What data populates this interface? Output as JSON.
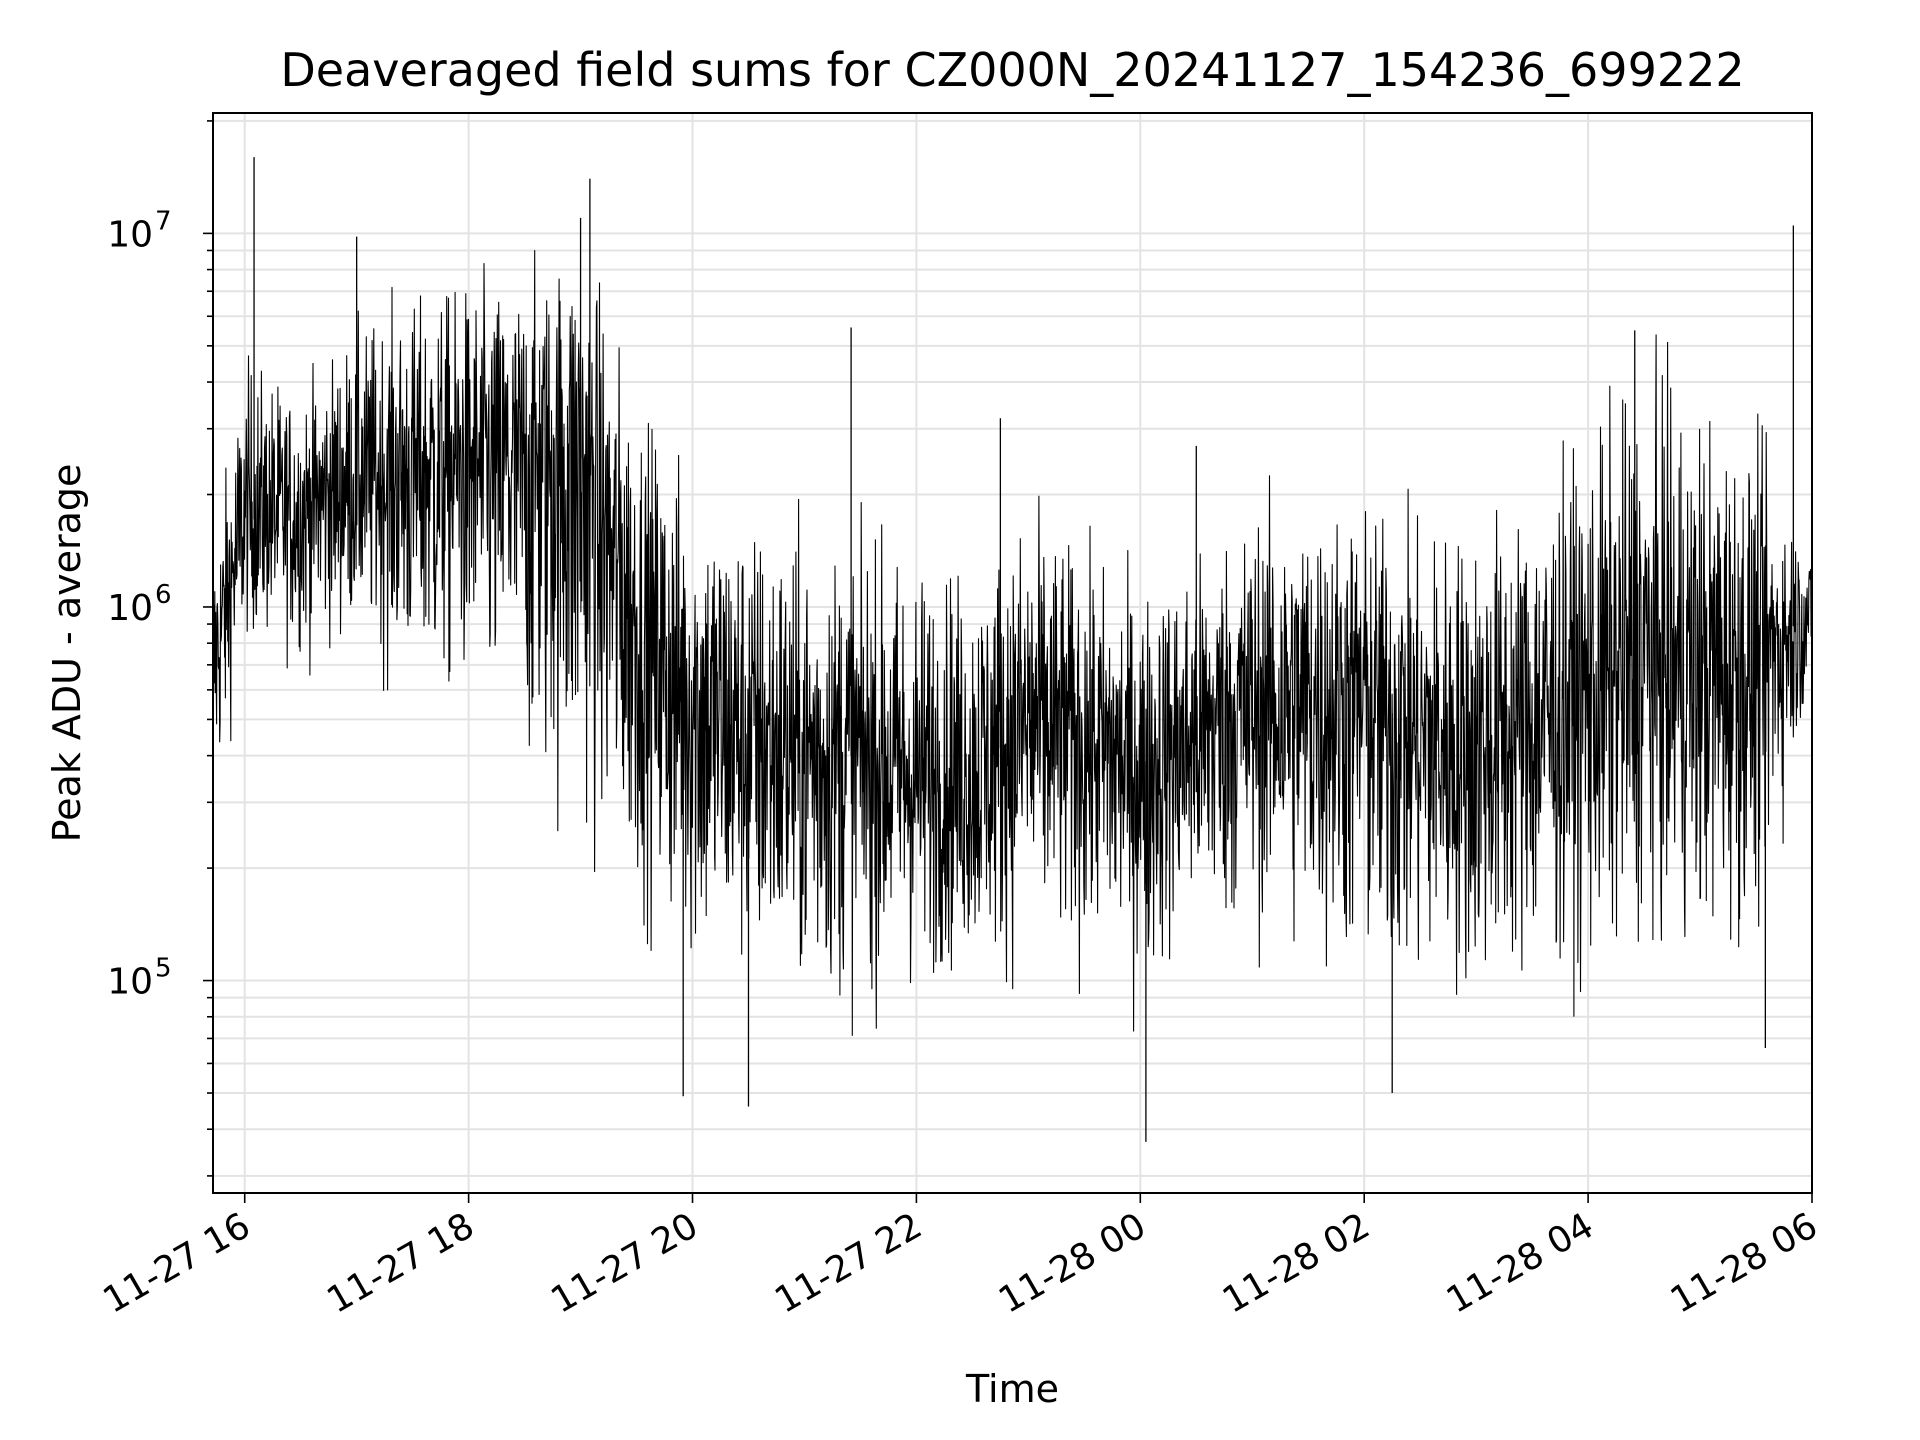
{
  "chart_data": {
    "type": "line",
    "title": "Deaveraged field sums for CZ000N_20241127_154236_699222",
    "xlabel": "Time",
    "ylabel": "Peak ADU - average",
    "yscale": "log",
    "ylim": [
      27000,
      21000000
    ],
    "xlim": [
      "2024-11-27 15:43",
      "2024-11-28 06:00"
    ],
    "grid": true,
    "line_color": "#000000",
    "x_ticks": [
      {
        "value": "2024-11-27 16:00",
        "label": "11-27 16"
      },
      {
        "value": "2024-11-27 18:00",
        "label": "11-27 18"
      },
      {
        "value": "2024-11-27 20:00",
        "label": "11-27 20"
      },
      {
        "value": "2024-11-27 22:00",
        "label": "11-27 22"
      },
      {
        "value": "2024-11-28 00:00",
        "label": "11-28 00"
      },
      {
        "value": "2024-11-28 02:00",
        "label": "11-28 02"
      },
      {
        "value": "2024-11-28 04:00",
        "label": "11-28 04"
      },
      {
        "value": "2024-11-28 06:00",
        "label": "11-28 06"
      }
    ],
    "y_ticks": [
      {
        "value": 100000,
        "base": "10",
        "exp": "5"
      },
      {
        "value": 1000000,
        "base": "10",
        "exp": "6"
      },
      {
        "value": 10000000,
        "base": "10",
        "exp": "7"
      }
    ],
    "series_envelope": {
      "x": [
        "2024-11-27 15:43",
        "2024-11-27 16:00",
        "2024-11-27 16:30",
        "2024-11-27 17:00",
        "2024-11-27 17:30",
        "2024-11-27 18:00",
        "2024-11-27 18:30",
        "2024-11-27 19:00",
        "2024-11-27 19:30",
        "2024-11-27 20:00",
        "2024-11-27 20:30",
        "2024-11-27 21:00",
        "2024-11-27 21:30",
        "2024-11-27 22:00",
        "2024-11-27 22:30",
        "2024-11-27 23:00",
        "2024-11-27 23:30",
        "2024-11-28 00:00",
        "2024-11-28 00:30",
        "2024-11-28 01:00",
        "2024-11-28 01:30",
        "2024-11-28 02:00",
        "2024-11-28 02:30",
        "2024-11-28 03:00",
        "2024-11-28 03:30",
        "2024-11-28 04:00",
        "2024-11-28 04:30",
        "2024-11-28 05:00",
        "2024-11-28 05:30",
        "2024-11-28 06:00"
      ],
      "median": [
        700000,
        1700000,
        1800000,
        2200000,
        2400000,
        2400000,
        2500000,
        2500000,
        900000,
        550000,
        450000,
        400000,
        400000,
        350000,
        350000,
        500000,
        450000,
        380000,
        450000,
        550000,
        600000,
        600000,
        450000,
        420000,
        500000,
        600000,
        700000,
        650000,
        700000,
        1000000
      ],
      "lower": [
        250000,
        800000,
        700000,
        800000,
        500000,
        500000,
        300000,
        200000,
        150000,
        90000,
        90000,
        80000,
        80000,
        90000,
        100000,
        100000,
        100000,
        80000,
        120000,
        120000,
        100000,
        80000,
        80000,
        80000,
        90000,
        90000,
        120000,
        110000,
        120000,
        600000
      ],
      "upper": [
        1500000,
        5000000,
        4000000,
        6000000,
        7000000,
        8000000,
        8000000,
        11000000,
        4000000,
        2500000,
        2000000,
        1700000,
        1700000,
        1500000,
        1400000,
        2000000,
        1500000,
        1200000,
        1500000,
        2000000,
        2000000,
        2000000,
        1800000,
        1900000,
        2200000,
        3000000,
        5000000,
        4000000,
        3000000,
        1400000
      ]
    },
    "spikes": [
      {
        "x": "2024-11-27 16:05",
        "y": 16000000
      },
      {
        "x": "2024-11-27 19:05",
        "y": 14000000
      },
      {
        "x": "2024-11-27 19:00",
        "y": 11000000
      },
      {
        "x": "2024-11-27 17:00",
        "y": 9800000
      },
      {
        "x": "2024-11-27 21:25",
        "y": 5600000
      },
      {
        "x": "2024-11-27 22:45",
        "y": 3200000
      },
      {
        "x": "2024-11-28 00:30",
        "y": 2700000
      },
      {
        "x": "2024-11-28 04:25",
        "y": 5500000
      },
      {
        "x": "2024-11-28 05:50",
        "y": 10500000
      },
      {
        "x": "2024-11-27 19:55",
        "y": 49000
      },
      {
        "x": "2024-11-27 20:30",
        "y": 46000
      },
      {
        "x": "2024-11-28 00:03",
        "y": 37000
      },
      {
        "x": "2024-11-28 02:15",
        "y": 50000
      },
      {
        "x": "2024-11-28 05:35",
        "y": 66000
      }
    ]
  }
}
